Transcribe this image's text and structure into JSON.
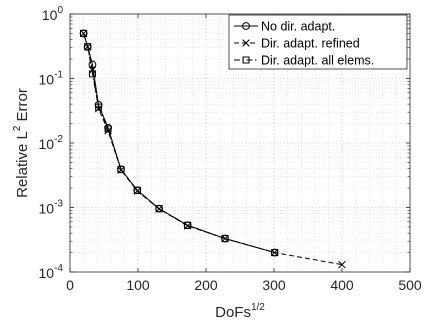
{
  "chart_data": {
    "type": "line",
    "xlabel": "DoFs",
    "xlabel_sup": "1/2",
    "ylabel": "Relative L",
    "ylabel_sup": "2",
    "ylabel_tail": " Error",
    "xlim": [
      0,
      500
    ],
    "ylim": [
      0.0001,
      1
    ],
    "yscale": "log",
    "grid": true,
    "minor_grid": true,
    "legend_position": "top-right",
    "x_ticks": [
      0,
      100,
      200,
      300,
      400,
      500
    ],
    "x_tick_labels": [
      "0",
      "100",
      "200",
      "300",
      "400",
      "500"
    ],
    "y_ticks": [
      0.0001,
      0.001,
      0.01,
      0.1,
      1
    ],
    "y_tick_bases": [
      "10",
      "10",
      "10",
      "10",
      "10"
    ],
    "y_tick_exps": [
      "-4",
      "-3",
      "-2",
      "-1",
      "0"
    ],
    "series": [
      {
        "name": "No dir. adapt.",
        "marker": "circle",
        "dash": "solid",
        "x": [
          20,
          26,
          33,
          42,
          56,
          75,
          99,
          131,
          173,
          228,
          301
        ],
        "y": [
          0.5,
          0.31,
          0.165,
          0.039,
          0.0172,
          0.0039,
          0.00185,
          0.00096,
          0.00053,
          0.00033,
          0.0002
        ]
      },
      {
        "name": "Dir. adapt. refined",
        "marker": "x",
        "dash": "dashed",
        "x": [
          20,
          26,
          33,
          42,
          56,
          75,
          99,
          131,
          173,
          228,
          301,
          400
        ],
        "y": [
          0.5,
          0.31,
          0.135,
          0.034,
          0.0155,
          0.0038,
          0.0018,
          0.00095,
          0.00052,
          0.00033,
          0.0002,
          0.00013
        ]
      },
      {
        "name": "Dir. adapt. all elems.",
        "marker": "square",
        "dash": "dashdot",
        "x": [
          20,
          26,
          33,
          42,
          56,
          75,
          99,
          131,
          173,
          228,
          301
        ],
        "y": [
          0.5,
          0.31,
          0.118,
          0.036,
          0.0165,
          0.0039,
          0.00185,
          0.00096,
          0.00053,
          0.00033,
          0.0002
        ]
      }
    ]
  }
}
